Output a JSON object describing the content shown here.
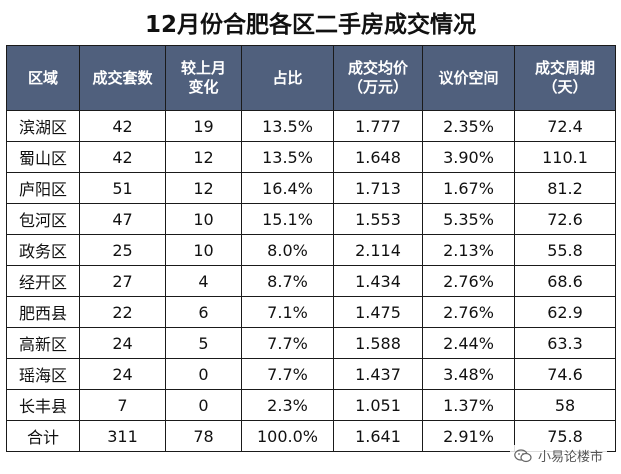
{
  "title": "12月份合肥各区二手房成交情况",
  "headers": [
    [
      "区域"
    ],
    [
      "成交套数"
    ],
    [
      "较上月",
      "变化"
    ],
    [
      "占比"
    ],
    [
      "成交均价",
      "（万元）"
    ],
    [
      "议价空间"
    ],
    [
      "成交周期",
      "（天）"
    ]
  ],
  "rows": [
    [
      "滨湖区",
      "42",
      "19",
      "13.5%",
      "1.777",
      "2.35%",
      "72.4"
    ],
    [
      "蜀山区",
      "42",
      "12",
      "13.5%",
      "1.648",
      "3.90%",
      "110.1"
    ],
    [
      "庐阳区",
      "51",
      "12",
      "16.4%",
      "1.713",
      "1.67%",
      "81.2"
    ],
    [
      "包河区",
      "47",
      "10",
      "15.1%",
      "1.553",
      "5.35%",
      "72.6"
    ],
    [
      "政务区",
      "25",
      "10",
      "8.0%",
      "2.114",
      "2.13%",
      "55.8"
    ],
    [
      "经开区",
      "27",
      "4",
      "8.7%",
      "1.434",
      "2.76%",
      "68.6"
    ],
    [
      "肥西县",
      "22",
      "6",
      "7.1%",
      "1.475",
      "2.76%",
      "62.9"
    ],
    [
      "高新区",
      "24",
      "5",
      "7.7%",
      "1.588",
      "2.44%",
      "63.3"
    ],
    [
      "瑶海区",
      "24",
      "0",
      "7.7%",
      "1.437",
      "3.48%",
      "74.6"
    ],
    [
      "长丰县",
      "7",
      "0",
      "2.3%",
      "1.051",
      "1.37%",
      "58"
    ],
    [
      "合计",
      "311",
      "78",
      "100.0%",
      "1.641",
      "2.91%",
      "75.8"
    ]
  ],
  "watermark": {
    "text": "小易论楼市",
    "icon": "wechat-icon"
  },
  "colors": {
    "header_bg": "#50607d",
    "header_text": "#ffffff",
    "border": "#1a1a1a"
  }
}
